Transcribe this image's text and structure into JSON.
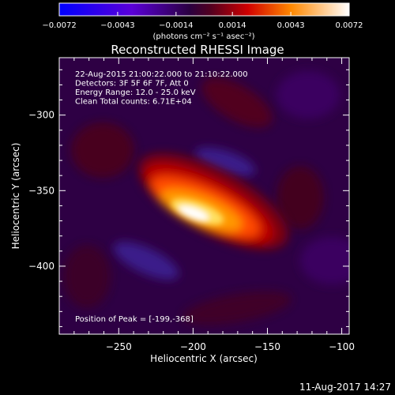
{
  "chart_data": {
    "type": "heatmap",
    "title": "Reconstructed RHESSI Image",
    "xlabel": "Heliocentric X (arcsec)",
    "ylabel": "Heliocentric Y (arcsec)",
    "xlim": [
      -290,
      -95
    ],
    "ylim": [
      -445,
      -262
    ],
    "x_ticks": [
      -250,
      -200,
      -150,
      -100
    ],
    "y_ticks": [
      -300,
      -350,
      -400
    ],
    "colorbar": {
      "ticks": [
        -0.0072,
        -0.0043,
        -0.0014,
        0.0014,
        0.0043,
        0.0072
      ],
      "tick_labels": [
        "-0.0072",
        "-0.0043",
        "-0.0014",
        "0.0014",
        "0.0043",
        "0.0072"
      ],
      "unit_label": "(photons cm⁻² s⁻¹ asec⁻²)",
      "range": [
        -0.0072,
        0.0072
      ]
    },
    "annotations": [
      "22-Aug-2015 21:00:22.000 to 21:10:22.000",
      "Detectors: 3F 5F 6F 7F, Att 0",
      "Energy Range: 12.0 - 25.0 keV",
      "Clean     Total counts: 6.71E+04"
    ],
    "peak_label": "Position of Peak = [-199,-368]",
    "peak": [
      -199,
      -368
    ]
  },
  "footer": {
    "timestamp": "11-Aug-2017 14:27"
  }
}
